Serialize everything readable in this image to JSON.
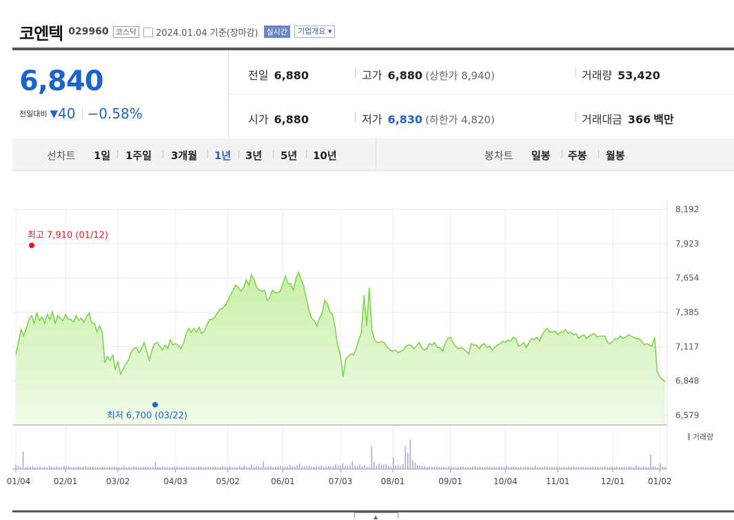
{
  "header": {
    "name": "코엔텍",
    "code": "029960",
    "market": "코스닥",
    "date": "2024.01.04 기준(장마감)",
    "realtime": "실시간",
    "company": "기업개요 ▾"
  },
  "summary": {
    "price": "6,840",
    "change_label": "전일대비",
    "change_dir": "▼",
    "change": "40",
    "change_pct": "−0.58%",
    "prev_label": "전일",
    "prev": "6,880",
    "open_label": "시가",
    "open": "6,880",
    "high_label": "고가",
    "high": "6,880",
    "upper": "(상한가 8,940)",
    "low_label": "저가",
    "low": "6,830",
    "lower": "(하한가 4,820)",
    "vol_label": "거래량",
    "vol": "53,420",
    "amt_label": "거래대금",
    "amt": "366",
    "amt_unit": "백만"
  },
  "tabs": {
    "line_label": "선차트",
    "line": [
      "1일",
      "1주일",
      "3개월",
      "1년",
      "3년",
      "5년",
      "10년"
    ],
    "active": "1년",
    "candle_label": "봉차트",
    "candle": [
      "일봉",
      "주봉",
      "월봉"
    ]
  },
  "colors": {
    "line": "#7fd34e",
    "fill_top": "#c9efa8",
    "fill_bottom": "#f1fbe9",
    "high": "#e8191c",
    "low": "#1a64d0",
    "volume": "#a79bd6"
  },
  "chart_data": {
    "type": "area",
    "y_ticks": [
      "8,192",
      "7,923",
      "7,654",
      "7,385",
      "7,117",
      "6,848",
      "6,579"
    ],
    "ylim": [
      6579,
      8192
    ],
    "x_ticks": [
      "01/04",
      "02/01",
      "03/02",
      "04/03",
      "05/02",
      "06/01",
      "07/03",
      "08/01",
      "09/01",
      "10/04",
      "11/01",
      "12/01",
      "01/02"
    ],
    "max_label": "최고 7,910 (01/12)",
    "min_label": "최저 6,700 (03/22)",
    "volume_legend": "거래량",
    "price_series": [
      7055,
      7150,
      7250,
      7200,
      7260,
      7330,
      7360,
      7300,
      7380,
      7320,
      7350,
      7300,
      7370,
      7330,
      7390,
      7300,
      7360,
      7340,
      7320,
      7370,
      7330,
      7330,
      7310,
      7360,
      7320,
      7340,
      7310,
      7350,
      7380,
      7300,
      7300,
      7230,
      7280,
      7230,
      6990,
      7040,
      7010,
      7050,
      6940,
      7000,
      6900,
      6940,
      6980,
      7010,
      7070,
      7100,
      7110,
      7070,
      7100,
      7150,
      7080,
      7010,
      7090,
      7140,
      7150,
      7120,
      7090,
      7130,
      7100,
      7170,
      7130,
      7140,
      7130,
      7100,
      7140,
      7210,
      7260,
      7230,
      7260,
      7230,
      7270,
      7220,
      7240,
      7290,
      7330,
      7330,
      7350,
      7380,
      7410,
      7420,
      7440,
      7480,
      7520,
      7560,
      7600,
      7580,
      7550,
      7580,
      7640,
      7600,
      7680,
      7640,
      7580,
      7560,
      7550,
      7560,
      7480,
      7500,
      7560,
      7540,
      7540,
      7550,
      7610,
      7670,
      7610,
      7610,
      7560,
      7650,
      7700,
      7640,
      7590,
      7490,
      7400,
      7340,
      7320,
      7280,
      7340,
      7380,
      7480,
      7450,
      7390,
      7370,
      7260,
      7120,
      7050,
      6880,
      7020,
      7040,
      7060,
      7050,
      7100,
      7170,
      7230,
      7520,
      7280,
      7580,
      7250,
      7170,
      7150,
      7150,
      7160,
      7140,
      7110,
      7090,
      7080,
      7090,
      7070,
      7080,
      7090,
      7120,
      7130,
      7130,
      7100,
      7120,
      7150,
      7110,
      7090,
      7100,
      7140,
      7130,
      7150,
      7110,
      7110,
      7080,
      7140,
      7180,
      7190,
      7150,
      7120,
      7100,
      7110,
      7100,
      7080,
      7060,
      7140,
      7130,
      7130,
      7100,
      7130,
      7140,
      7110,
      7120,
      7090,
      7110,
      7130,
      7140,
      7160,
      7150,
      7170,
      7160,
      7190,
      7180,
      7120,
      7130,
      7150,
      7110,
      7150,
      7180,
      7170,
      7190,
      7160,
      7210,
      7240,
      7260,
      7230,
      7230,
      7240,
      7210,
      7230,
      7230,
      7250,
      7220,
      7230,
      7210,
      7220,
      7180,
      7200,
      7210,
      7180,
      7200,
      7210,
      7220,
      7190,
      7200,
      7200,
      7200,
      7150,
      7140,
      7160,
      7180,
      7180,
      7200,
      7180,
      7190,
      7210,
      7200,
      7190,
      7180,
      7180,
      7160,
      7130,
      7140,
      7130,
      7120,
      7190,
      6920,
      6880,
      6860,
      6840
    ],
    "volume_series": [
      0.12,
      0.08,
      0.06,
      0.45,
      0.05,
      0.07,
      0.06,
      0.08,
      0.05,
      0.06,
      0.07,
      0.05,
      0.06,
      0.05,
      0.09,
      0.06,
      0.05,
      0.07,
      0.06,
      0.05,
      0.08,
      0.06,
      0.07,
      0.05,
      0.06,
      0.05,
      0.07,
      0.05,
      0.06,
      0.08,
      0.05,
      0.06,
      0.07,
      0.05,
      0.06,
      0.05,
      0.07,
      0.06,
      0.05,
      0.06,
      0.05,
      0.07,
      0.06,
      0.05,
      0.06,
      0.08,
      0.05,
      0.06,
      0.05,
      0.07,
      0.06,
      0.05,
      0.06,
      0.05,
      0.07,
      0.06,
      0.05,
      0.06,
      0.18,
      0.06,
      0.05,
      0.07,
      0.06,
      0.05,
      0.06,
      0.05,
      0.07,
      0.06,
      0.05,
      0.06,
      0.05,
      0.07,
      0.06,
      0.05,
      0.06,
      0.05,
      0.07,
      0.06,
      0.05,
      0.06,
      0.06,
      0.05,
      0.07,
      0.06,
      0.05,
      0.06,
      0.08,
      0.06,
      0.05,
      0.07,
      0.06,
      0.05,
      0.06,
      0.08,
      0.05,
      0.09,
      0.06,
      0.05,
      0.12,
      0.06,
      0.08,
      0.07,
      0.05,
      0.2,
      0.06,
      0.07,
      0.08,
      0.05,
      0.06,
      0.07,
      0.08,
      0.05,
      0.06,
      0.07,
      0.11,
      0.07,
      0.06,
      0.1,
      0.14,
      0.06,
      0.07,
      0.08,
      0.09,
      0.07,
      0.06,
      0.08,
      0.07,
      0.09,
      0.06,
      0.07,
      0.08,
      0.06,
      0.07,
      0.12,
      0.09,
      0.1,
      0.14,
      0.08,
      0.07,
      0.09,
      0.2,
      0.1,
      0.08,
      0.12,
      0.07,
      0.1,
      0.06,
      0.07,
      0.6,
      0.18,
      0.09,
      0.14,
      0.1,
      0.12,
      0.13,
      0.08,
      0.07,
      0.3,
      0.09,
      0.11,
      0.08,
      0.12,
      0.6,
      0.42,
      0.76,
      0.22,
      0.17,
      0.1,
      0.09,
      0.08,
      0.07,
      0.06,
      0.07,
      0.06,
      0.05,
      0.07,
      0.06,
      0.05,
      0.06,
      0.05,
      0.07,
      0.06,
      0.05,
      0.06,
      0.05,
      0.07,
      0.06,
      0.05,
      0.06,
      0.05,
      0.07,
      0.08,
      0.06,
      0.07,
      0.06,
      0.05,
      0.07,
      0.06,
      0.05,
      0.06,
      0.05,
      0.07,
      0.06,
      0.05,
      0.09,
      0.06,
      0.05,
      0.07,
      0.06,
      0.05,
      0.06,
      0.05,
      0.07,
      0.06,
      0.05,
      0.06,
      0.09,
      0.05,
      0.06,
      0.05,
      0.07,
      0.06,
      0.05,
      0.06,
      0.05,
      0.07,
      0.06,
      0.05,
      0.06,
      0.05,
      0.07,
      0.06,
      0.08,
      0.06,
      0.05,
      0.07,
      0.06,
      0.05,
      0.06,
      0.05,
      0.07,
      0.06,
      0.05,
      0.06,
      0.05,
      0.07,
      0.06,
      0.05,
      0.06,
      0.05,
      0.07,
      0.06,
      0.05,
      0.06,
      0.05,
      0.07,
      0.06,
      0.05,
      0.09,
      0.06,
      0.05,
      0.07,
      0.06,
      0.05,
      0.37,
      0.07,
      0.06,
      0.05,
      0.15,
      0.07,
      0.06
    ]
  }
}
